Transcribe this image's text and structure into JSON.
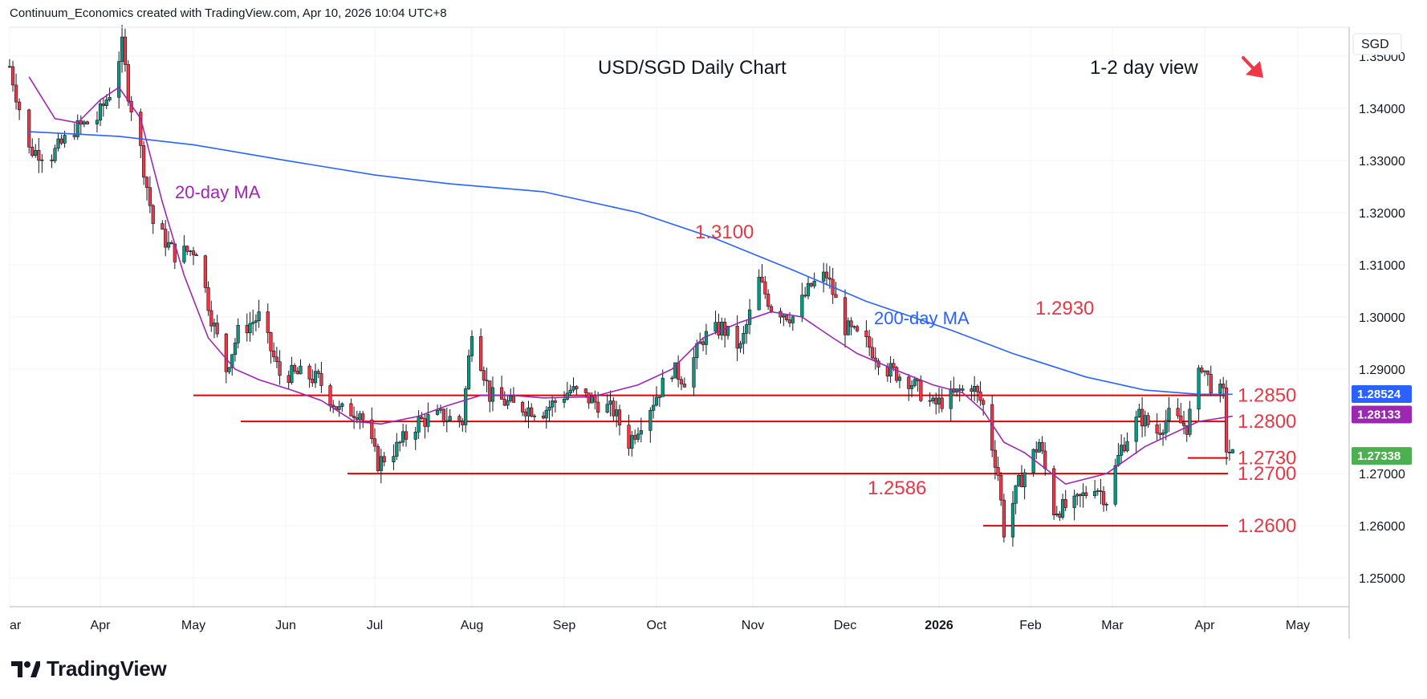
{
  "header": {
    "attribution": "Continuum_Economics created with TradingView.com, Apr 10, 2026 10:04 UTC+8"
  },
  "brand": {
    "logo_text": "TradingView",
    "icon": "tradingview-logo-icon"
  },
  "colors": {
    "up": "#089981",
    "down": "#f23645",
    "wick": "#131722",
    "ma20": "#9c27b0",
    "ma200": "#2962ff",
    "levels": "#e00000",
    "label_red": "#e53945"
  },
  "chart_data": {
    "type": "candlestick",
    "title": "USD/SGD Daily Chart",
    "subtitle": "1-2 day view",
    "direction_icon": "arrow-down-right-icon",
    "currency": "SGD",
    "x_ticks": [
      "ar",
      "Apr",
      "May",
      "Jun",
      "Jul",
      "Aug",
      "Sep",
      "Oct",
      "Nov",
      "Dec",
      "2026",
      "Feb",
      "Mar",
      "Apr",
      "May"
    ],
    "y_ticks": [
      "1.35000",
      "1.34000",
      "1.33000",
      "1.32000",
      "1.31000",
      "1.30000",
      "1.29000",
      "1.27000",
      "1.26000",
      "1.25000"
    ],
    "y_range": [
      1.2445,
      1.3555
    ],
    "grid": true,
    "price_tags": [
      {
        "value": 1.28524,
        "label": "1.28524",
        "color": "#2962ff"
      },
      {
        "value": 1.28133,
        "label": "1.28133",
        "color": "#9c27b0"
      },
      {
        "value": 1.27338,
        "label": "1.27338",
        "color": "#4caf50"
      }
    ],
    "levels": [
      {
        "value": 1.285,
        "label": "1.2850",
        "start_month": "May"
      },
      {
        "value": 1.28,
        "label": "1.2800",
        "start_month": "mid-May"
      },
      {
        "value": 1.273,
        "label": "1.2730",
        "start_month": "Mar"
      },
      {
        "value": 1.27,
        "label": "1.2700",
        "start_month": "late Jun"
      },
      {
        "value": 1.26,
        "label": "1.2600",
        "start_month": "late Jan"
      }
    ],
    "annotations": [
      {
        "text": "1.3100",
        "value": 1.31
      },
      {
        "text": "1.2930",
        "value": 1.293
      },
      {
        "text": "1.2586",
        "value": 1.2586
      },
      {
        "text": "20-day MA"
      },
      {
        "text": "200-day MA"
      }
    ],
    "series": [
      {
        "name": "20-day MA",
        "values": [
          1.346,
          1.338,
          1.3372,
          1.3416,
          1.344,
          1.338,
          1.322,
          1.308,
          1.296,
          1.29,
          1.288,
          1.286,
          1.284,
          1.28,
          1.2795,
          1.281,
          1.283,
          1.285,
          1.285,
          1.2845,
          1.2847,
          1.287,
          1.29,
          1.296,
          1.299,
          1.301,
          1.3,
          1.296,
          1.293,
          1.29,
          1.287,
          1.2855,
          1.282,
          1.276,
          1.274,
          1.271,
          1.268,
          1.27,
          1.2752,
          1.28,
          1.281
        ],
        "dates": [
          "2025-03-10",
          "2025-03-18",
          "2025-03-25",
          "2025-04-01",
          "2025-04-07",
          "2025-04-14",
          "2025-04-21",
          "2025-04-28",
          "2025-05-06",
          "2025-05-15",
          "2025-05-23",
          "2025-06-03",
          "2025-06-13",
          "2025-06-24",
          "2025-07-03",
          "2025-07-15",
          "2025-07-24",
          "2025-08-04",
          "2025-08-14",
          "2025-08-25",
          "2025-09-10",
          "2025-09-25",
          "2025-10-06",
          "2025-10-16",
          "2025-10-28",
          "2025-11-07",
          "2025-11-17",
          "2025-11-27",
          "2025-12-05",
          "2025-12-17",
          "2025-12-30",
          "2026-01-09",
          "2026-01-16",
          "2026-01-23",
          "2026-01-30",
          "2026-02-06",
          "2026-02-13",
          "2026-02-27",
          "2026-03-12",
          "2026-03-30",
          "2026-04-10"
        ]
      },
      {
        "name": "200-day MA",
        "values": [
          1.3355,
          1.3346,
          1.333,
          1.33,
          1.3272,
          1.3255,
          1.324,
          1.32,
          1.315,
          1.309,
          1.303,
          1.2975,
          1.293,
          1.2885,
          1.286,
          1.2852,
          1.2852
        ],
        "dates": [
          "2025-03-10",
          "2025-04-07",
          "2025-05-01",
          "2025-06-01",
          "2025-07-01",
          "2025-07-25",
          "2025-08-25",
          "2025-09-25",
          "2025-10-20",
          "2025-11-14",
          "2025-12-08",
          "2026-01-05",
          "2026-01-26",
          "2026-02-20",
          "2026-03-12",
          "2026-03-30",
          "2026-04-10"
        ]
      }
    ]
  }
}
